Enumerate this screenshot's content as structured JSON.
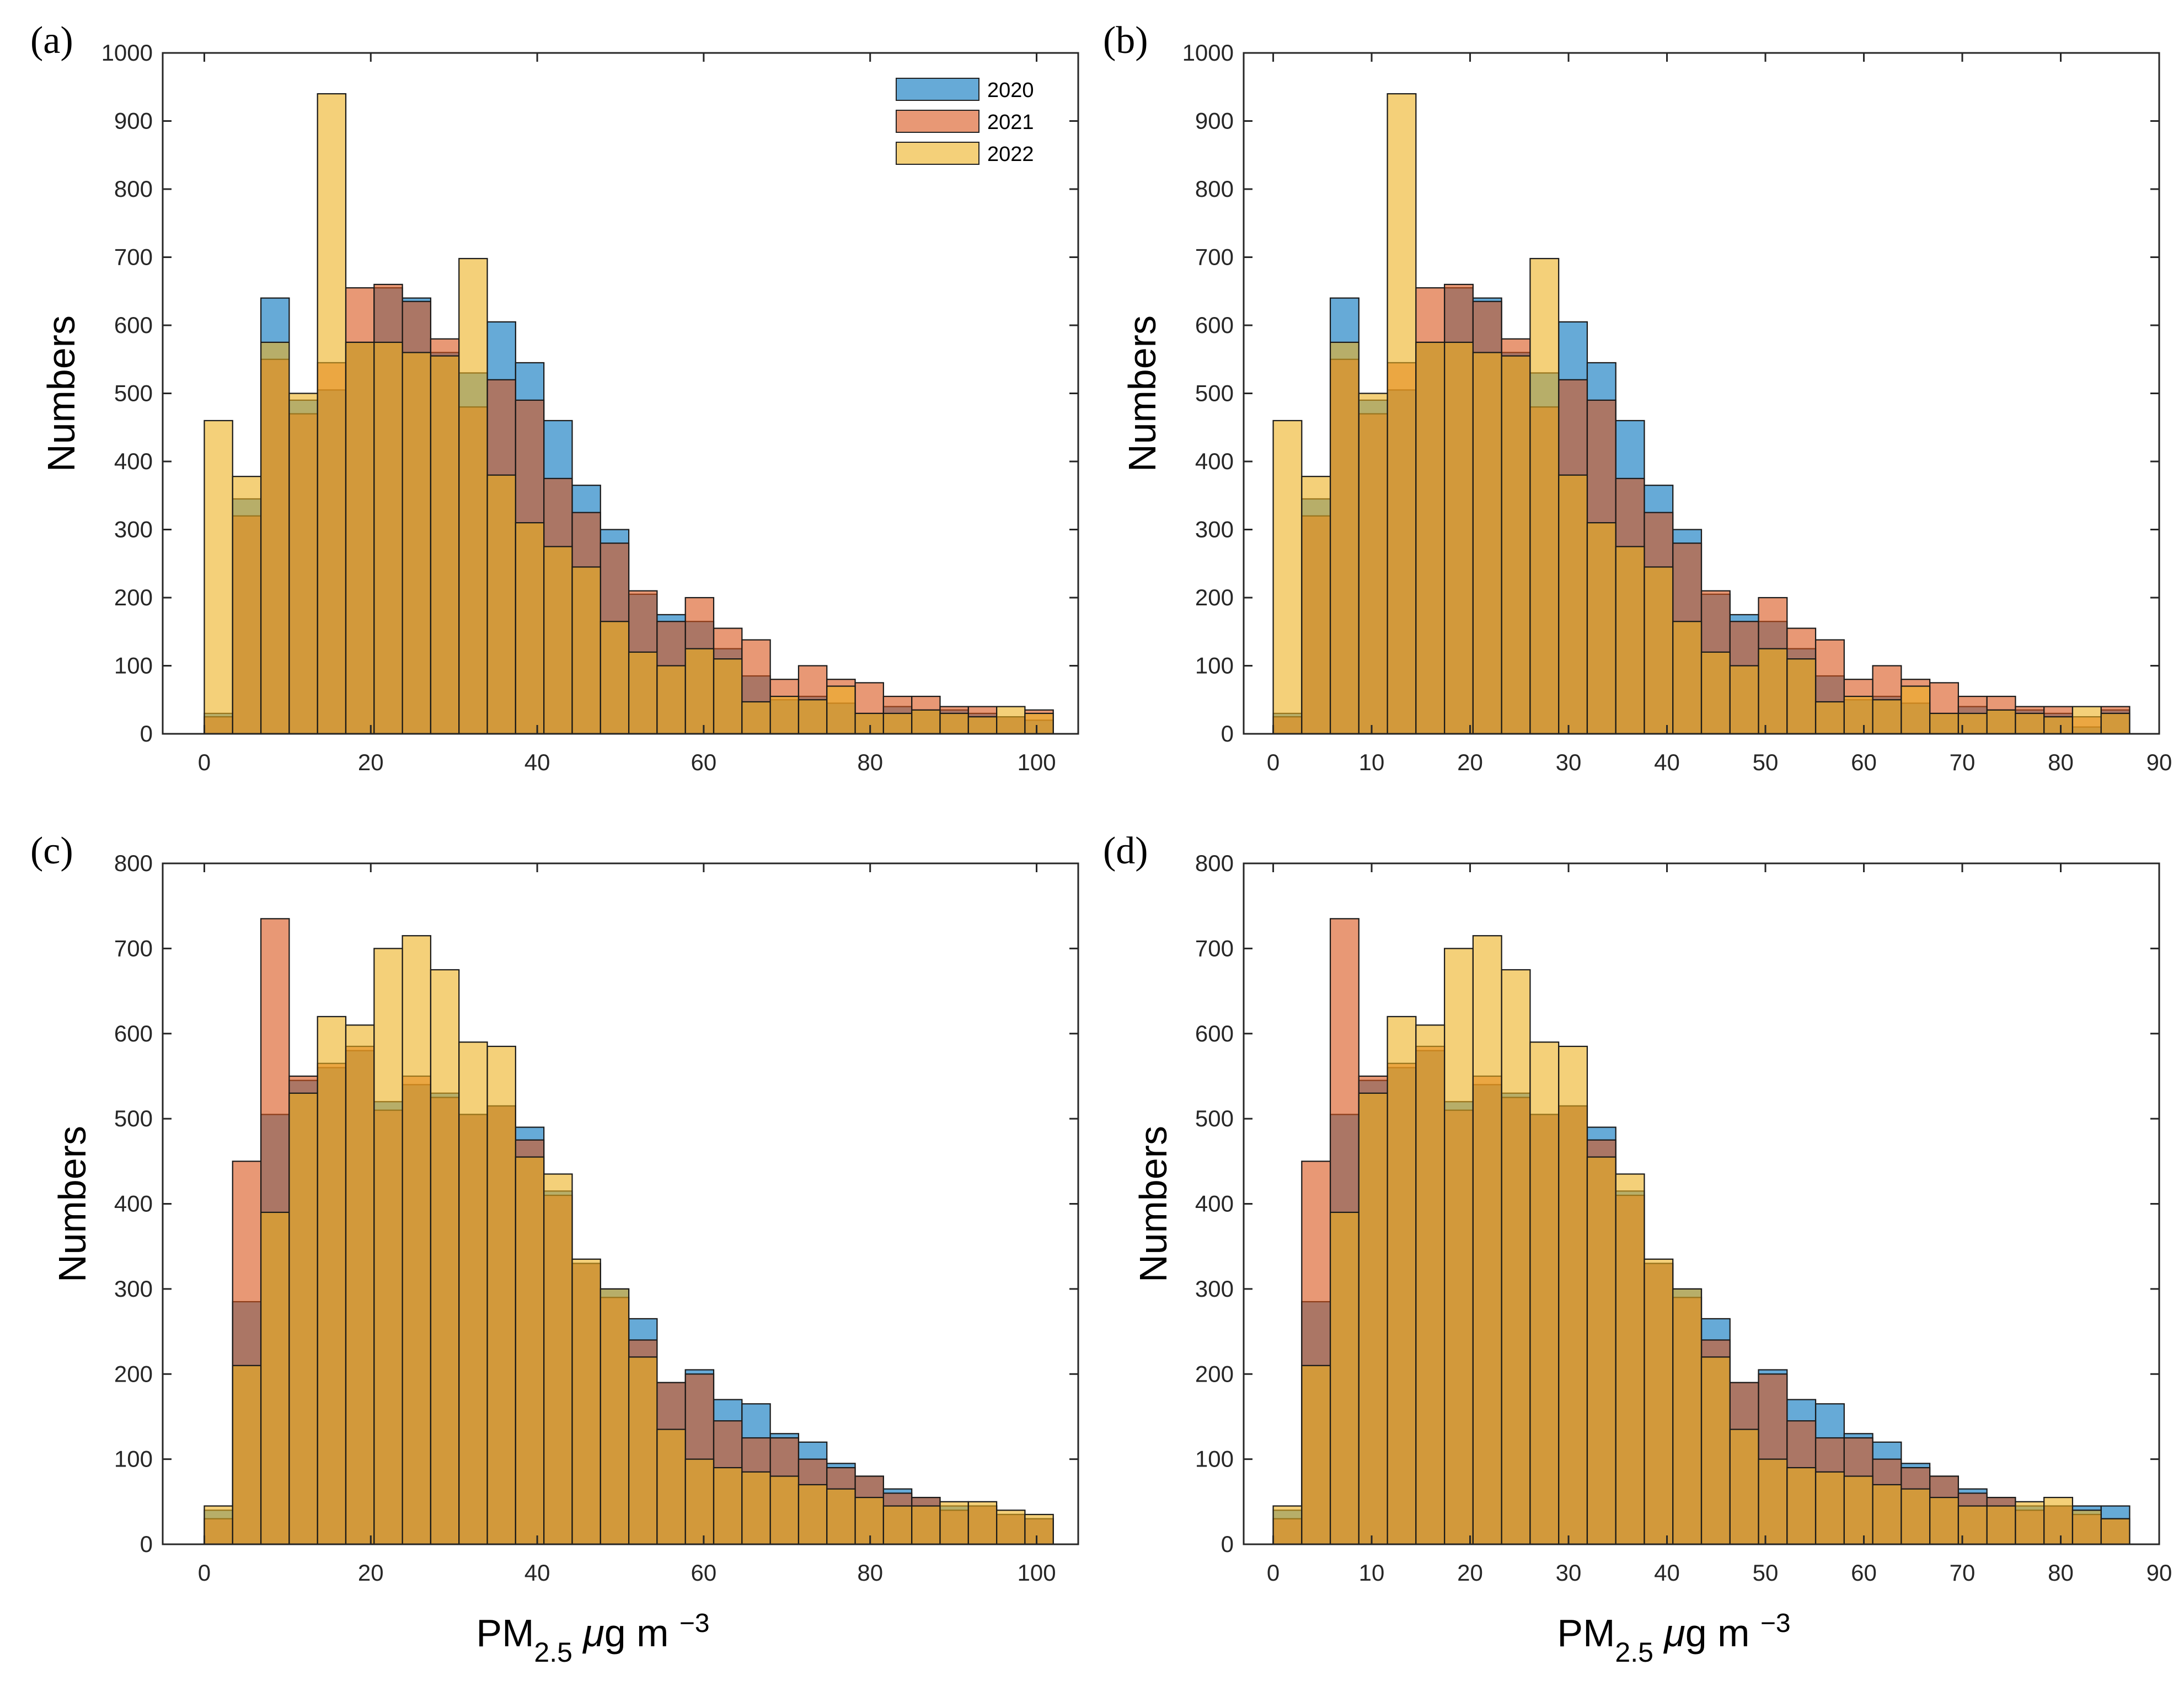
{
  "colors": {
    "2020": "#0072BD",
    "2021": "#D95319",
    "2022": "#EDB120"
  },
  "bar_opacity": 0.6,
  "chart_data": [
    {
      "type": "bar",
      "panel_label": "(a)",
      "title": "",
      "xlabel": "",
      "ylabel": "Numbers",
      "xlim": [
        -5,
        105
      ],
      "ylim": [
        0,
        1000
      ],
      "xticks": [
        0,
        20,
        40,
        60,
        80,
        100
      ],
      "yticks": [
        0,
        100,
        200,
        300,
        400,
        500,
        600,
        700,
        800,
        900,
        1000
      ],
      "bin_start": 0,
      "bin_width": 3.4,
      "legend": {
        "location": "top-right",
        "entries": [
          "2020",
          "2021",
          "2022"
        ]
      },
      "series": [
        {
          "name": "2020",
          "values": [
            30,
            345,
            640,
            490,
            505,
            575,
            655,
            640,
            560,
            530,
            605,
            545,
            460,
            365,
            300,
            205,
            175,
            165,
            125,
            85,
            50,
            55,
            45,
            30,
            40,
            35,
            35,
            30,
            25,
            20
          ]
        },
        {
          "name": "2021",
          "values": [
            25,
            320,
            550,
            470,
            545,
            655,
            660,
            635,
            580,
            480,
            520,
            490,
            375,
            325,
            280,
            210,
            165,
            200,
            155,
            138,
            80,
            100,
            80,
            75,
            55,
            55,
            40,
            40,
            25,
            35
          ]
        },
        {
          "name": "2022",
          "values": [
            460,
            378,
            575,
            500,
            940,
            575,
            575,
            560,
            555,
            698,
            380,
            310,
            275,
            245,
            165,
            120,
            100,
            125,
            110,
            47,
            55,
            50,
            70,
            30,
            30,
            35,
            30,
            25,
            40,
            30
          ]
        }
      ]
    },
    {
      "type": "bar",
      "panel_label": "(b)",
      "title": "",
      "xlabel": "",
      "ylabel": "Numbers",
      "xlim": [
        -3,
        90
      ],
      "ylim": [
        0,
        1000
      ],
      "xticks": [
        0,
        10,
        20,
        30,
        40,
        50,
        60,
        70,
        80,
        90
      ],
      "yticks": [
        0,
        100,
        200,
        300,
        400,
        500,
        600,
        700,
        800,
        900,
        1000
      ],
      "bin_start": 0,
      "bin_width": 2.9,
      "series": [
        {
          "name": "2020",
          "values": [
            30,
            345,
            640,
            490,
            505,
            575,
            655,
            640,
            560,
            530,
            605,
            545,
            460,
            365,
            300,
            205,
            175,
            165,
            125,
            85,
            50,
            55,
            45,
            30,
            40,
            35,
            35,
            30,
            10,
            35
          ]
        },
        {
          "name": "2021",
          "values": [
            25,
            320,
            550,
            470,
            545,
            655,
            660,
            635,
            580,
            480,
            520,
            490,
            375,
            325,
            280,
            210,
            165,
            200,
            155,
            138,
            80,
            100,
            80,
            75,
            55,
            55,
            40,
            40,
            25,
            40
          ]
        },
        {
          "name": "2022",
          "values": [
            460,
            378,
            575,
            500,
            940,
            575,
            575,
            560,
            555,
            698,
            380,
            310,
            275,
            245,
            165,
            120,
            100,
            125,
            110,
            47,
            55,
            50,
            70,
            30,
            30,
            35,
            30,
            25,
            40,
            30
          ]
        }
      ]
    },
    {
      "type": "bar",
      "panel_label": "(c)",
      "title": "",
      "xlabel": "PM2.5 μg m −3",
      "ylabel": "Numbers",
      "xlim": [
        -5,
        105
      ],
      "ylim": [
        0,
        800
      ],
      "xticks": [
        0,
        20,
        40,
        60,
        80,
        100
      ],
      "yticks": [
        0,
        100,
        200,
        300,
        400,
        500,
        600,
        700,
        800
      ],
      "bin_start": 0,
      "bin_width": 3.4,
      "series": [
        {
          "name": "2020",
          "values": [
            40,
            285,
            505,
            545,
            560,
            580,
            520,
            540,
            530,
            505,
            515,
            490,
            415,
            330,
            300,
            265,
            190,
            205,
            170,
            165,
            130,
            120,
            95,
            80,
            65,
            55,
            45,
            45,
            35,
            30
          ]
        },
        {
          "name": "2021",
          "values": [
            30,
            450,
            735,
            550,
            565,
            585,
            510,
            550,
            525,
            505,
            515,
            475,
            410,
            330,
            290,
            240,
            190,
            200,
            145,
            125,
            125,
            100,
            90,
            80,
            60,
            55,
            40,
            45,
            35,
            30
          ]
        },
        {
          "name": "2022",
          "values": [
            45,
            210,
            390,
            530,
            620,
            610,
            700,
            715,
            675,
            590,
            585,
            455,
            435,
            335,
            300,
            220,
            135,
            100,
            90,
            85,
            80,
            70,
            65,
            55,
            45,
            45,
            50,
            50,
            40,
            35
          ]
        }
      ]
    },
    {
      "type": "bar",
      "panel_label": "(d)",
      "title": "",
      "xlabel": "PM2.5 μg m −3",
      "ylabel": "Numbers",
      "xlim": [
        -3,
        90
      ],
      "ylim": [
        0,
        800
      ],
      "xticks": [
        0,
        10,
        20,
        30,
        40,
        50,
        60,
        70,
        80,
        90
      ],
      "yticks": [
        0,
        100,
        200,
        300,
        400,
        500,
        600,
        700,
        800
      ],
      "bin_start": 0,
      "bin_width": 2.9,
      "series": [
        {
          "name": "2020",
          "values": [
            40,
            285,
            505,
            545,
            560,
            580,
            520,
            540,
            530,
            505,
            515,
            490,
            415,
            330,
            300,
            265,
            190,
            205,
            170,
            165,
            130,
            120,
            95,
            80,
            65,
            55,
            45,
            45,
            45,
            45
          ]
        },
        {
          "name": "2021",
          "values": [
            30,
            450,
            735,
            550,
            565,
            585,
            510,
            550,
            525,
            505,
            515,
            475,
            410,
            330,
            290,
            240,
            190,
            200,
            145,
            125,
            125,
            100,
            90,
            80,
            60,
            55,
            40,
            45,
            35,
            30
          ]
        },
        {
          "name": "2022",
          "values": [
            45,
            210,
            390,
            530,
            620,
            610,
            700,
            715,
            675,
            590,
            585,
            455,
            435,
            335,
            300,
            220,
            135,
            100,
            90,
            85,
            80,
            70,
            65,
            55,
            45,
            45,
            50,
            55,
            40,
            30
          ]
        }
      ]
    }
  ]
}
